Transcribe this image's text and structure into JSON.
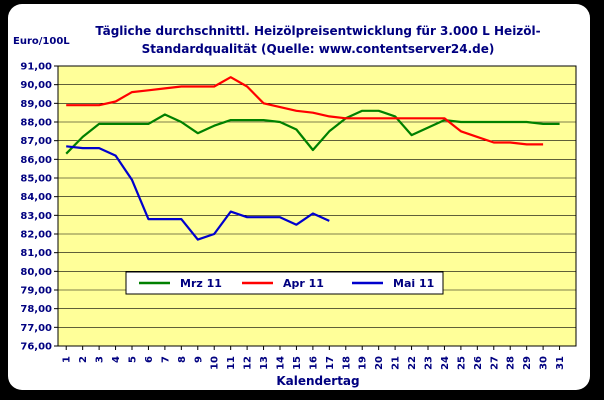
{
  "chart_data": {
    "type": "line",
    "title_line1": "Tägliche durchschnittl. Heizölpreisentwicklung für 3.000 L Heizöl-",
    "title_line2": "Standardqualität (Quelle: www.contentserver24.de)",
    "ylabel": "Euro/100L",
    "xlabel": "Kalendertag",
    "ylim": [
      76,
      91
    ],
    "y_ticks": [
      "91,00",
      "90,00",
      "89,00",
      "88,00",
      "87,00",
      "86,00",
      "85,00",
      "84,00",
      "83,00",
      "82,00",
      "81,00",
      "80,00",
      "79,00",
      "78,00",
      "77,00",
      "76,00"
    ],
    "x_ticks": [
      "1",
      "2",
      "3",
      "4",
      "5",
      "6",
      "7",
      "8",
      "9",
      "10",
      "11",
      "12",
      "13",
      "14",
      "15",
      "16",
      "17",
      "18",
      "19",
      "20",
      "21",
      "22",
      "23",
      "24",
      "25",
      "26",
      "27",
      "28",
      "29",
      "30",
      "31"
    ],
    "grid": true,
    "legend_position": "lower-center",
    "colors": {
      "page_background": "#000000",
      "panel_background": "#ffffff",
      "plot_background": "#ffff99",
      "grid": "#000000",
      "text": "#000080"
    },
    "series": [
      {
        "name": "Mrz 11",
        "color": "#008000",
        "x": [
          1,
          2,
          3,
          4,
          5,
          6,
          7,
          8,
          9,
          10,
          11,
          12,
          13,
          14,
          15,
          16,
          17,
          18,
          19,
          20,
          21,
          22,
          23,
          24,
          25,
          26,
          27,
          28,
          29,
          30,
          31
        ],
        "values": [
          86.3,
          87.2,
          87.9,
          87.9,
          87.9,
          87.9,
          88.4,
          88.0,
          87.4,
          87.8,
          88.1,
          88.1,
          88.1,
          88.0,
          87.6,
          86.5,
          87.5,
          88.2,
          88.6,
          88.6,
          88.3,
          87.3,
          87.7,
          88.1,
          88.0,
          88.0,
          88.0,
          88.0,
          88.0,
          87.9,
          87.9
        ]
      },
      {
        "name": "Apr 11",
        "color": "#ff0000",
        "x": [
          1,
          2,
          3,
          4,
          5,
          6,
          7,
          8,
          9,
          10,
          11,
          12,
          13,
          14,
          15,
          16,
          17,
          18,
          19,
          20,
          21,
          22,
          23,
          24,
          25,
          26,
          27,
          28,
          29,
          30
        ],
        "values": [
          88.9,
          88.9,
          88.9,
          89.1,
          89.6,
          89.7,
          89.8,
          89.9,
          89.9,
          89.9,
          90.4,
          89.9,
          89.0,
          88.8,
          88.6,
          88.5,
          88.3,
          88.2,
          88.2,
          88.2,
          88.2,
          88.2,
          88.2,
          88.2,
          87.5,
          87.2,
          86.9,
          86.9,
          86.8,
          86.8
        ]
      },
      {
        "name": "Mai 11",
        "color": "#0000cd",
        "x": [
          1,
          2,
          3,
          4,
          5,
          6,
          7,
          8,
          9,
          10,
          11,
          12,
          13,
          14,
          15,
          16,
          17
        ],
        "values": [
          86.7,
          86.6,
          86.6,
          86.2,
          84.9,
          82.8,
          82.8,
          82.8,
          81.7,
          82.0,
          83.2,
          82.9,
          82.9,
          82.9,
          82.5,
          83.1,
          82.7
        ]
      }
    ]
  }
}
